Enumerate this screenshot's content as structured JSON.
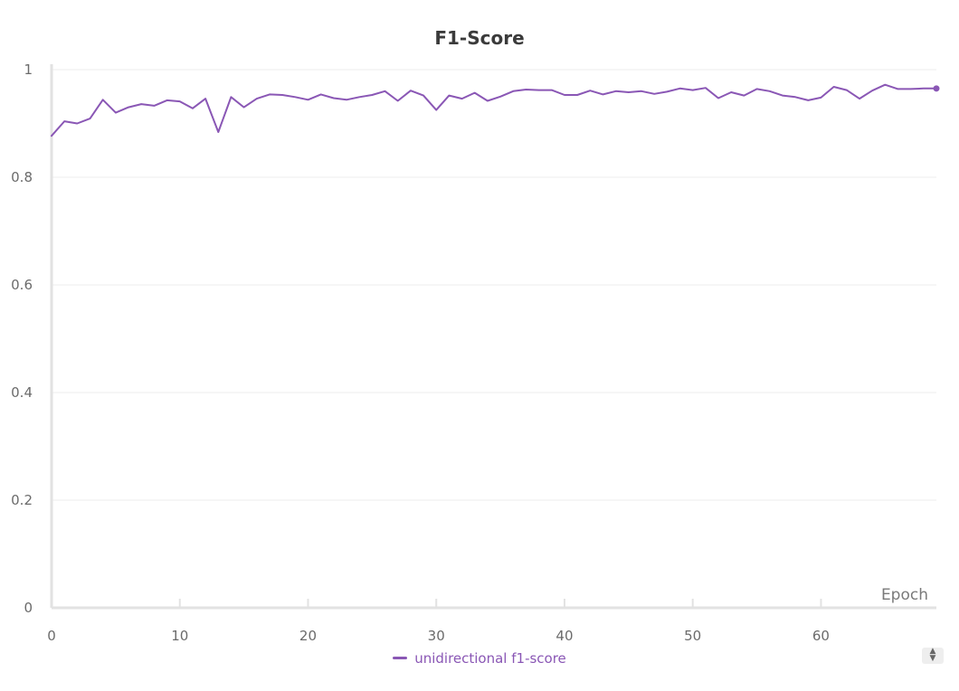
{
  "chart_data": {
    "type": "line",
    "title": "F1-Score",
    "xlabel": "Epoch",
    "ylabel": "",
    "xlim": [
      0,
      69
    ],
    "ylim": [
      0,
      1
    ],
    "x_ticks": [
      "0",
      "10",
      "20",
      "30",
      "40",
      "50",
      "60"
    ],
    "y_ticks": [
      "0",
      "0.2",
      "0.4",
      "0.6",
      "0.8",
      "1"
    ],
    "grid": true,
    "legend_position": "bottom",
    "series": [
      {
        "name": "unidirectional f1-score",
        "color": "#8a57b5",
        "x": [
          0,
          1,
          2,
          3,
          4,
          5,
          6,
          7,
          8,
          9,
          10,
          11,
          12,
          13,
          14,
          15,
          16,
          17,
          18,
          19,
          20,
          21,
          22,
          23,
          24,
          25,
          26,
          27,
          28,
          29,
          30,
          31,
          32,
          33,
          34,
          35,
          36,
          37,
          38,
          39,
          40,
          41,
          42,
          43,
          44,
          45,
          46,
          47,
          48,
          49,
          50,
          51,
          52,
          53,
          54,
          55,
          56,
          57,
          58,
          59,
          60,
          61,
          62,
          63,
          64,
          65,
          66,
          67,
          68,
          69
        ],
        "values": [
          0.877,
          0.904,
          0.9,
          0.909,
          0.944,
          0.92,
          0.93,
          0.936,
          0.933,
          0.943,
          0.941,
          0.928,
          0.946,
          0.884,
          0.949,
          0.93,
          0.946,
          0.954,
          0.953,
          0.949,
          0.944,
          0.954,
          0.947,
          0.944,
          0.949,
          0.953,
          0.96,
          0.942,
          0.961,
          0.952,
          0.925,
          0.952,
          0.946,
          0.957,
          0.942,
          0.95,
          0.96,
          0.963,
          0.962,
          0.962,
          0.953,
          0.953,
          0.961,
          0.954,
          0.96,
          0.958,
          0.96,
          0.955,
          0.959,
          0.965,
          0.962,
          0.966,
          0.947,
          0.958,
          0.952,
          0.964,
          0.96,
          0.952,
          0.949,
          0.943,
          0.948,
          0.968,
          0.962,
          0.946,
          0.961,
          0.972,
          0.964,
          0.964,
          0.965,
          0.965
        ]
      }
    ]
  }
}
